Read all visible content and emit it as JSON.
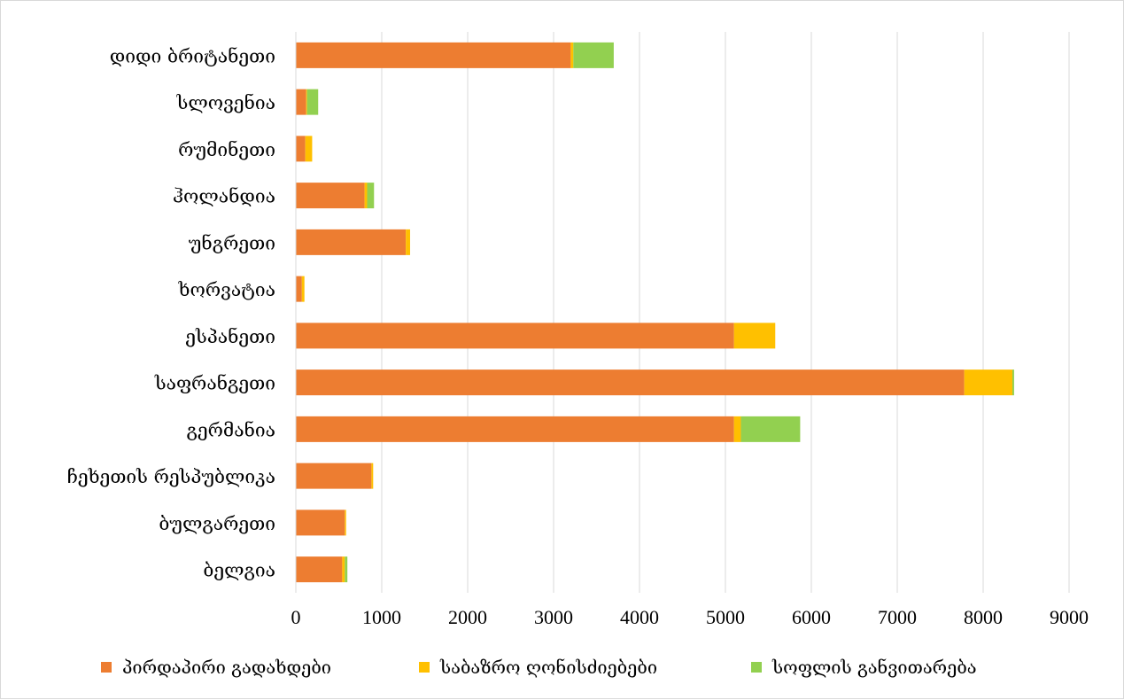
{
  "chart_data": {
    "type": "bar",
    "orientation": "horizontal",
    "stacked": true,
    "categories": [
      "დიდი ბრიტანეთი",
      "სლოვენია",
      "რუმინეთი",
      "ჰოლანდია",
      "უნგრეთი",
      "ხორვატია",
      "ესპანეთი",
      "საფრანგეთი",
      "გერმანია",
      "ჩეხეთის რესპუბლიკა",
      "ბულგარეთი",
      "ბელგია"
    ],
    "series": [
      {
        "name": "პირდაპირი გადახდები",
        "color": "#ED7D31",
        "values": [
          3200,
          120,
          110,
          800,
          1280,
          70,
          5100,
          7780,
          5100,
          880,
          570,
          540
        ]
      },
      {
        "name": "საბაზრო ღონისძიებები",
        "color": "#FFC000",
        "values": [
          30,
          10,
          80,
          30,
          50,
          30,
          480,
          560,
          80,
          20,
          15,
          30
        ]
      },
      {
        "name": "სოფლის განვითარება",
        "color": "#92D050",
        "values": [
          470,
          130,
          0,
          80,
          0,
          0,
          0,
          20,
          690,
          0,
          0,
          30
        ]
      }
    ],
    "x_ticks": [
      "0",
      "1000",
      "2000",
      "3000",
      "4000",
      "5000",
      "6000",
      "7000",
      "8000",
      "9000"
    ],
    "xlim": [
      0,
      9000
    ],
    "grid": "vertical",
    "legend_position": "bottom",
    "title": "",
    "xlabel": "",
    "ylabel": ""
  }
}
